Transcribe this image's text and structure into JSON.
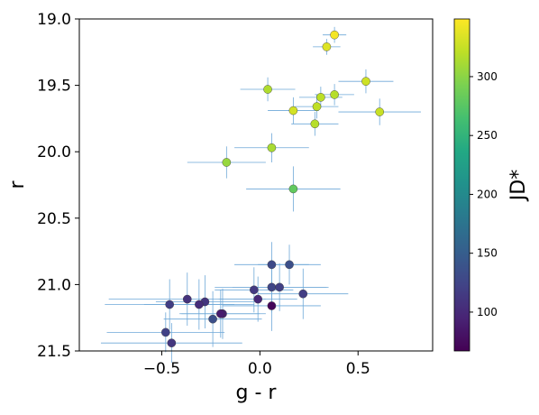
{
  "chart_data": {
    "type": "scatter",
    "xlabel": "g - r",
    "ylabel": "r",
    "xlim": [
      -0.92,
      0.88
    ],
    "ylim": [
      21.5,
      19.0
    ],
    "y_inverted": true,
    "x_ticks": [
      -0.5,
      0.0,
      0.5
    ],
    "x_tick_labels": [
      "−0.5",
      "0.0",
      "0.5"
    ],
    "y_ticks": [
      19.0,
      19.5,
      20.0,
      20.5,
      21.0,
      21.5
    ],
    "y_tick_labels": [
      "19.0",
      "19.5",
      "20.0",
      "20.5",
      "21.0",
      "21.5"
    ],
    "grid": false,
    "colorbar": {
      "label": "JD*",
      "range": [
        67,
        349
      ],
      "colormap": "viridis",
      "ticks": [
        100,
        150,
        200,
        250,
        300
      ],
      "tick_labels": [
        "100",
        "150",
        "200",
        "250",
        "300"
      ]
    },
    "errorbar_color": "#6ea8d8",
    "points": [
      {
        "x": 0.38,
        "y": 19.12,
        "xerr": 0.06,
        "yerr": 0.06,
        "jd": 345
      },
      {
        "x": 0.34,
        "y": 19.21,
        "xerr": 0.07,
        "yerr": 0.06,
        "jd": 335
      },
      {
        "x": 0.54,
        "y": 19.47,
        "xerr": 0.14,
        "yerr": 0.09,
        "jd": 328
      },
      {
        "x": 0.04,
        "y": 19.53,
        "xerr": 0.14,
        "yerr": 0.09,
        "jd": 315
      },
      {
        "x": 0.31,
        "y": 19.59,
        "xerr": 0.11,
        "yerr": 0.08,
        "jd": 320
      },
      {
        "x": 0.38,
        "y": 19.57,
        "xerr": 0.1,
        "yerr": 0.08,
        "jd": 318
      },
      {
        "x": 0.29,
        "y": 19.66,
        "xerr": 0.11,
        "yerr": 0.09,
        "jd": 322
      },
      {
        "x": 0.17,
        "y": 19.69,
        "xerr": 0.13,
        "yerr": 0.1,
        "jd": 330
      },
      {
        "x": 0.61,
        "y": 19.7,
        "xerr": 0.21,
        "yerr": 0.1,
        "jd": 325
      },
      {
        "x": 0.28,
        "y": 19.79,
        "xerr": 0.12,
        "yerr": 0.09,
        "jd": 318
      },
      {
        "x": 0.06,
        "y": 19.97,
        "xerr": 0.19,
        "yerr": 0.11,
        "jd": 312
      },
      {
        "x": -0.17,
        "y": 20.08,
        "xerr": 0.2,
        "yerr": 0.12,
        "jd": 305
      },
      {
        "x": 0.17,
        "y": 20.28,
        "xerr": 0.24,
        "yerr": 0.17,
        "jd": 280
      },
      {
        "x": 0.06,
        "y": 20.85,
        "xerr": 0.19,
        "yerr": 0.17,
        "jd": 130
      },
      {
        "x": 0.15,
        "y": 20.85,
        "xerr": 0.16,
        "yerr": 0.15,
        "jd": 135
      },
      {
        "x": 0.06,
        "y": 21.02,
        "xerr": 0.29,
        "yerr": 0.19,
        "jd": 125
      },
      {
        "x": 0.1,
        "y": 21.02,
        "xerr": 0.24,
        "yerr": 0.18,
        "jd": 120
      },
      {
        "x": -0.03,
        "y": 21.04,
        "xerr": 0.2,
        "yerr": 0.17,
        "jd": 115
      },
      {
        "x": 0.22,
        "y": 21.07,
        "xerr": 0.23,
        "yerr": 0.19,
        "jd": 118
      },
      {
        "x": -0.37,
        "y": 21.11,
        "xerr": 0.4,
        "yerr": 0.2,
        "jd": 108
      },
      {
        "x": -0.01,
        "y": 21.11,
        "xerr": 0.2,
        "yerr": 0.17,
        "jd": 100
      },
      {
        "x": -0.28,
        "y": 21.13,
        "xerr": 0.25,
        "yerr": 0.2,
        "jd": 110
      },
      {
        "x": -0.46,
        "y": 21.15,
        "xerr": 0.33,
        "yerr": 0.19,
        "jd": 118
      },
      {
        "x": -0.31,
        "y": 21.15,
        "xerr": 0.28,
        "yerr": 0.19,
        "jd": 102
      },
      {
        "x": 0.06,
        "y": 21.16,
        "xerr": 0.25,
        "yerr": 0.19,
        "jd": 70
      },
      {
        "x": -0.19,
        "y": 21.22,
        "xerr": 0.22,
        "yerr": 0.19,
        "jd": 92
      },
      {
        "x": -0.2,
        "y": 21.22,
        "xerr": 0.2,
        "yerr": 0.18,
        "jd": 88
      },
      {
        "x": -0.24,
        "y": 21.26,
        "xerr": 0.25,
        "yerr": 0.21,
        "jd": 135
      },
      {
        "x": -0.48,
        "y": 21.36,
        "xerr": 0.3,
        "yerr": 0.15,
        "jd": 122
      },
      {
        "x": -0.45,
        "y": 21.44,
        "xerr": 0.36,
        "yerr": 0.15,
        "jd": 112
      }
    ]
  }
}
